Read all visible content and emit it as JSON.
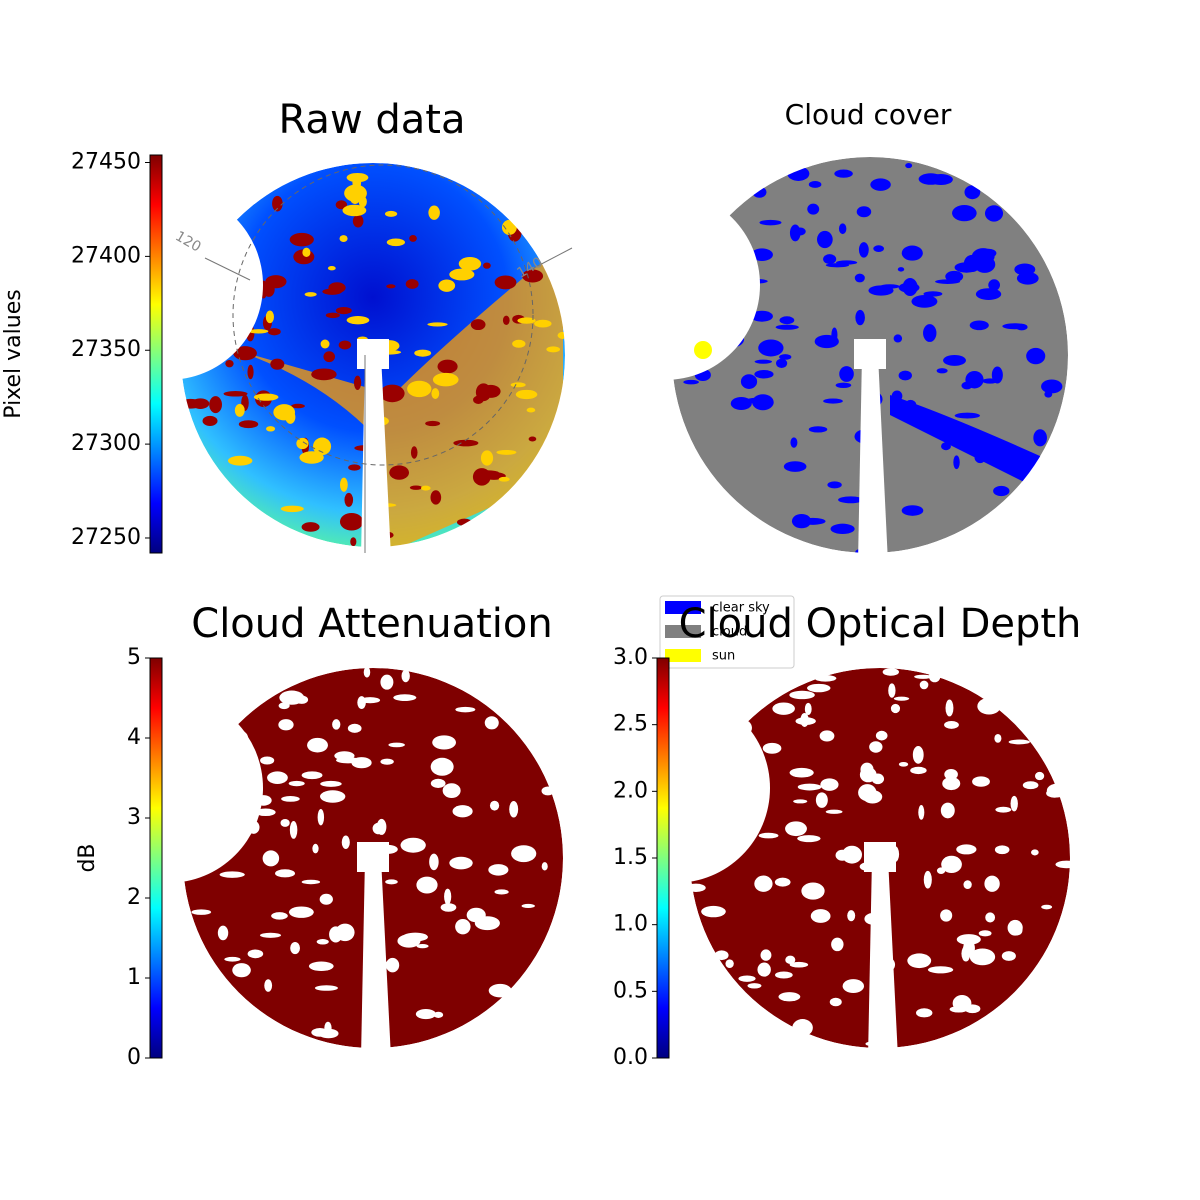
{
  "chart_data": [
    {
      "type": "heatmap",
      "title": "Raw data",
      "colorbar_label": "Pixel values",
      "colormap": "jet",
      "clim": [
        27242,
        27454
      ],
      "cticks": [
        27250,
        27300,
        27350,
        27400,
        27450
      ],
      "annotations": [
        "120",
        "140"
      ]
    },
    {
      "type": "classification",
      "title": "Cloud cover",
      "legend": "lower left",
      "series": [
        {
          "name": "clear sky",
          "color": "#0000ff"
        },
        {
          "name": "cloud",
          "color": "#808080"
        },
        {
          "name": "sun",
          "color": "#ffff00"
        }
      ]
    },
    {
      "type": "heatmap",
      "title": "Cloud Attenuation",
      "colorbar_label": "dB",
      "colormap": "jet",
      "clim": [
        0,
        5
      ],
      "cticks": [
        0,
        1,
        2,
        3,
        4,
        5
      ]
    },
    {
      "type": "heatmap",
      "title": "Cloud Optical Depth",
      "colormap": "jet",
      "clim": [
        0,
        3
      ],
      "cticks": [
        {
          "value": 0,
          "label": "0.0"
        },
        {
          "value": 0.5,
          "label": "0.5"
        },
        {
          "value": 1,
          "label": "1.0"
        },
        {
          "value": 1.5,
          "label": "1.5"
        },
        {
          "value": 2,
          "label": "2.0"
        },
        {
          "value": 2.5,
          "label": "2.5"
        },
        {
          "value": 3,
          "label": "3.0"
        }
      ]
    }
  ]
}
